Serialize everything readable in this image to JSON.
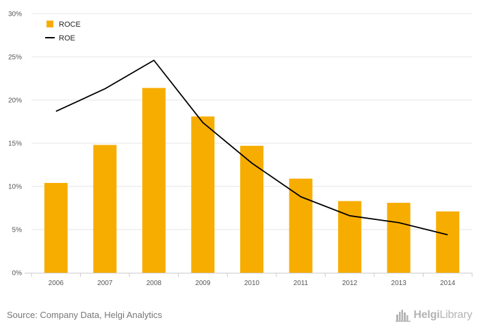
{
  "chart_data": {
    "type": "bar",
    "categories": [
      "2006",
      "2007",
      "2008",
      "2009",
      "2010",
      "2011",
      "2012",
      "2013",
      "2014"
    ],
    "series": [
      {
        "name": "ROCE",
        "kind": "bar",
        "color": "#f7ad00",
        "values": [
          10.4,
          14.8,
          21.4,
          18.1,
          14.7,
          10.9,
          8.3,
          8.1,
          7.1
        ]
      },
      {
        "name": "ROE",
        "kind": "line",
        "color": "#000000",
        "values": [
          18.7,
          21.3,
          24.6,
          17.4,
          12.7,
          8.8,
          6.6,
          5.8,
          4.4
        ]
      }
    ],
    "ylim": [
      0,
      30
    ],
    "ytick_labels": [
      "0%",
      "5%",
      "10%",
      "15%",
      "20%",
      "25%",
      "30%"
    ],
    "grid": true,
    "legend_position": "top-left"
  },
  "footer": {
    "source": "Source: Company Data, Helgi Analytics",
    "logo_text_1": "Helgi",
    "logo_text_2": "Library",
    "logo_icon": "city-skyline-icon"
  }
}
